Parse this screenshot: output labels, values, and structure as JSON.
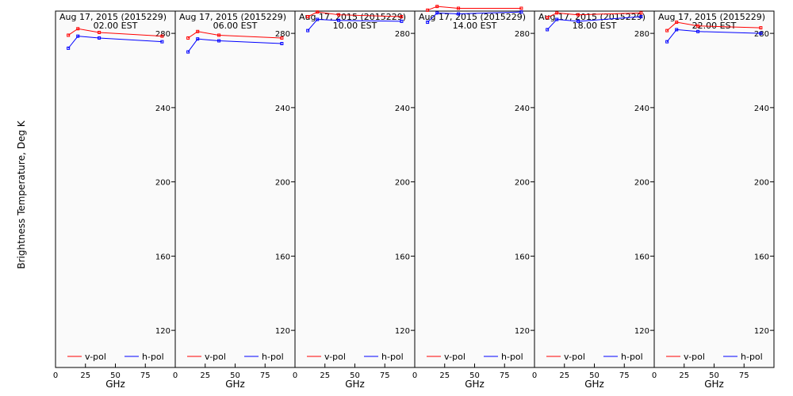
{
  "figure": {
    "ylabel": "Brightness Temperature, Deg K",
    "xlabel": "GHz"
  },
  "colors": {
    "vpol": "#ff0000",
    "hpol": "#0000ff",
    "plot_bg": "#fafafa",
    "axis": "#000000"
  },
  "chart_data": [
    {
      "type": "line",
      "title": "Aug 17, 2015 (2015229)",
      "subtitle": "02.00 EST",
      "xlabel": "GHz",
      "ylabel": "Brightness Temperature, Deg K",
      "xlim": [
        0,
        100
      ],
      "ylim": [
        100,
        292
      ],
      "xticks": [
        0,
        25,
        50,
        75
      ],
      "yticks": [
        120,
        160,
        200,
        240,
        280
      ],
      "x": [
        10.7,
        18.7,
        36.5,
        89.0
      ],
      "series": [
        {
          "name": "v-pol",
          "values": [
            279,
            282.5,
            280.5,
            278.5
          ]
        },
        {
          "name": "h-pol",
          "values": [
            272,
            278.5,
            277.5,
            275.5
          ]
        }
      ],
      "legend": "bottom"
    },
    {
      "type": "line",
      "title": "Aug 17, 2015 (2015229)",
      "subtitle": "06.00 EST",
      "xlabel": "GHz",
      "ylabel": "Brightness Temperature, Deg K",
      "xlim": [
        0,
        100
      ],
      "ylim": [
        100,
        292
      ],
      "xticks": [
        0,
        25,
        50,
        75
      ],
      "yticks": [
        120,
        160,
        200,
        240,
        280
      ],
      "x": [
        10.7,
        18.7,
        36.5,
        89.0
      ],
      "series": [
        {
          "name": "v-pol",
          "values": [
            277.5,
            281,
            279,
            277.5
          ]
        },
        {
          "name": "h-pol",
          "values": [
            270,
            277,
            276,
            274.5
          ]
        }
      ],
      "legend": "bottom"
    },
    {
      "type": "line",
      "title": "Aug 17, 2015 (2015229)",
      "subtitle": "10.00 EST",
      "xlabel": "GHz",
      "ylabel": "Brightness Temperature, Deg K",
      "xlim": [
        0,
        100
      ],
      "ylim": [
        100,
        292
      ],
      "xticks": [
        0,
        25,
        50,
        75
      ],
      "yticks": [
        120,
        160,
        200,
        240,
        280
      ],
      "x": [
        10.7,
        18.7,
        36.5,
        89.0
      ],
      "series": [
        {
          "name": "v-pol",
          "values": [
            289,
            291.5,
            290,
            289
          ]
        },
        {
          "name": "h-pol",
          "values": [
            281.5,
            287.5,
            287,
            286.5
          ]
        }
      ],
      "legend": "bottom"
    },
    {
      "type": "line",
      "title": "Aug 17, 2015 (2015229)",
      "subtitle": "14.00 EST",
      "xlabel": "GHz",
      "ylabel": "Brightness Temperature, Deg K",
      "xlim": [
        0,
        100
      ],
      "ylim": [
        100,
        292
      ],
      "xticks": [
        0,
        25,
        50,
        75
      ],
      "yticks": [
        120,
        160,
        200,
        240,
        280
      ],
      "x": [
        10.7,
        18.7,
        36.5,
        89.0
      ],
      "series": [
        {
          "name": "v-pol",
          "values": [
            292.5,
            294.5,
            293.5,
            293.5
          ]
        },
        {
          "name": "h-pol",
          "values": [
            286,
            291,
            290.5,
            291.5
          ]
        }
      ],
      "legend": "bottom"
    },
    {
      "type": "line",
      "title": "Aug 17, 2015 (2015229)",
      "subtitle": "18.00 EST",
      "xlabel": "GHz",
      "ylabel": "Brightness Temperature, Deg K",
      "xlim": [
        0,
        100
      ],
      "ylim": [
        100,
        292
      ],
      "xticks": [
        0,
        25,
        50,
        75
      ],
      "yticks": [
        120,
        160,
        200,
        240,
        280
      ],
      "x": [
        10.7,
        18.7,
        36.5,
        89.0
      ],
      "series": [
        {
          "name": "v-pol",
          "values": [
            288.5,
            291,
            290,
            291
          ]
        },
        {
          "name": "h-pol",
          "values": [
            282,
            287.5,
            286.5,
            289
          ]
        }
      ],
      "legend": "bottom"
    },
    {
      "type": "line",
      "title": "Aug 17, 2015 (2015229)",
      "subtitle": "22.00 EST",
      "xlabel": "GHz",
      "ylabel": "Brightness Temperature, Deg K",
      "xlim": [
        0,
        100
      ],
      "ylim": [
        100,
        292
      ],
      "xticks": [
        0,
        25,
        50,
        75
      ],
      "yticks": [
        120,
        160,
        200,
        240,
        280
      ],
      "x": [
        10.7,
        18.7,
        36.5,
        89.0
      ],
      "series": [
        {
          "name": "v-pol",
          "values": [
            281.5,
            286,
            284,
            283
          ]
        },
        {
          "name": "h-pol",
          "values": [
            275.5,
            282,
            281,
            280
          ]
        }
      ],
      "legend": "bottom"
    }
  ]
}
